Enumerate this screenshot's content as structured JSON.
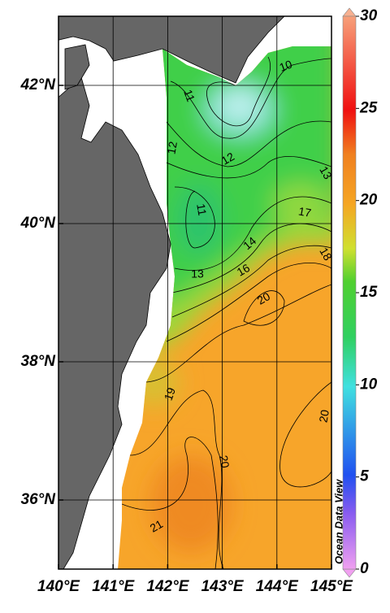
{
  "chart_data": {
    "type": "contour",
    "xlim": [
      140,
      145
    ],
    "ylim": [
      35,
      43
    ],
    "xticks": [
      {
        "value": 140,
        "label": "140°E"
      },
      {
        "value": 141,
        "label": "141°E"
      },
      {
        "value": 142,
        "label": "142°E"
      },
      {
        "value": 143,
        "label": "143°E"
      },
      {
        "value": 144,
        "label": "144°E"
      },
      {
        "value": 145,
        "label": "145°E"
      }
    ],
    "yticks": [
      {
        "value": 36,
        "label": "36°N"
      },
      {
        "value": 38,
        "label": "38°N"
      },
      {
        "value": 40,
        "label": "40°N"
      },
      {
        "value": 42,
        "label": "42°N"
      }
    ],
    "grid": true,
    "colorbar": {
      "lim": [
        0,
        30
      ],
      "ticks": [
        0,
        5,
        10,
        15,
        20,
        25,
        30
      ]
    },
    "contour_labels": [
      10,
      11,
      12,
      12,
      13,
      11,
      17,
      14,
      16,
      18,
      13,
      20,
      19,
      20,
      20,
      21
    ],
    "watermark": "Ocean Data View"
  }
}
